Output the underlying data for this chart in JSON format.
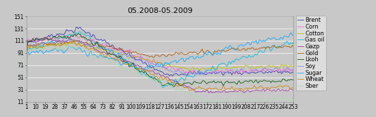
{
  "title": "05.2008-05.2009",
  "n_points": 253,
  "x_ticks": [
    1,
    10,
    19,
    28,
    37,
    46,
    55,
    64,
    73,
    82,
    91,
    100,
    109,
    118,
    127,
    136,
    145,
    154,
    163,
    172,
    181,
    190,
    199,
    208,
    217,
    226,
    235,
    244,
    253
  ],
  "y_ticks": [
    11,
    31,
    51,
    71,
    91,
    111,
    131,
    151
  ],
  "ylim": [
    11,
    151
  ],
  "xlim": [
    1,
    253
  ],
  "series_order": [
    "Brent",
    "Corn",
    "Cotton",
    "Gas oil",
    "Gazp",
    "Gold",
    "Lkoh",
    "Soy",
    "Sugar",
    "Wheat",
    "Sber"
  ],
  "series": {
    "Brent": {
      "color": "#3333AA"
    },
    "Corn": {
      "color": "#FF66CC"
    },
    "Cotton": {
      "color": "#BBBB00"
    },
    "Gas oil": {
      "color": "#00BBDD"
    },
    "Gazp": {
      "color": "#993399"
    },
    "Gold": {
      "color": "#AA5500"
    },
    "Lkoh": {
      "color": "#005500"
    },
    "Soy": {
      "color": "#8888EE"
    },
    "Sugar": {
      "color": "#00AAFF"
    },
    "Wheat": {
      "color": "#CC8800"
    },
    "Sber": {
      "color": "#AADDAA"
    }
  },
  "bg_color": "#C8C8C8",
  "plot_bg": "#C8C8C8",
  "grid_color": "#FFFFFF",
  "outer_bg": "#C8C8C8",
  "title_fontsize": 8,
  "tick_fontsize": 5.5,
  "legend_fontsize": 6,
  "linewidth": 0.6
}
